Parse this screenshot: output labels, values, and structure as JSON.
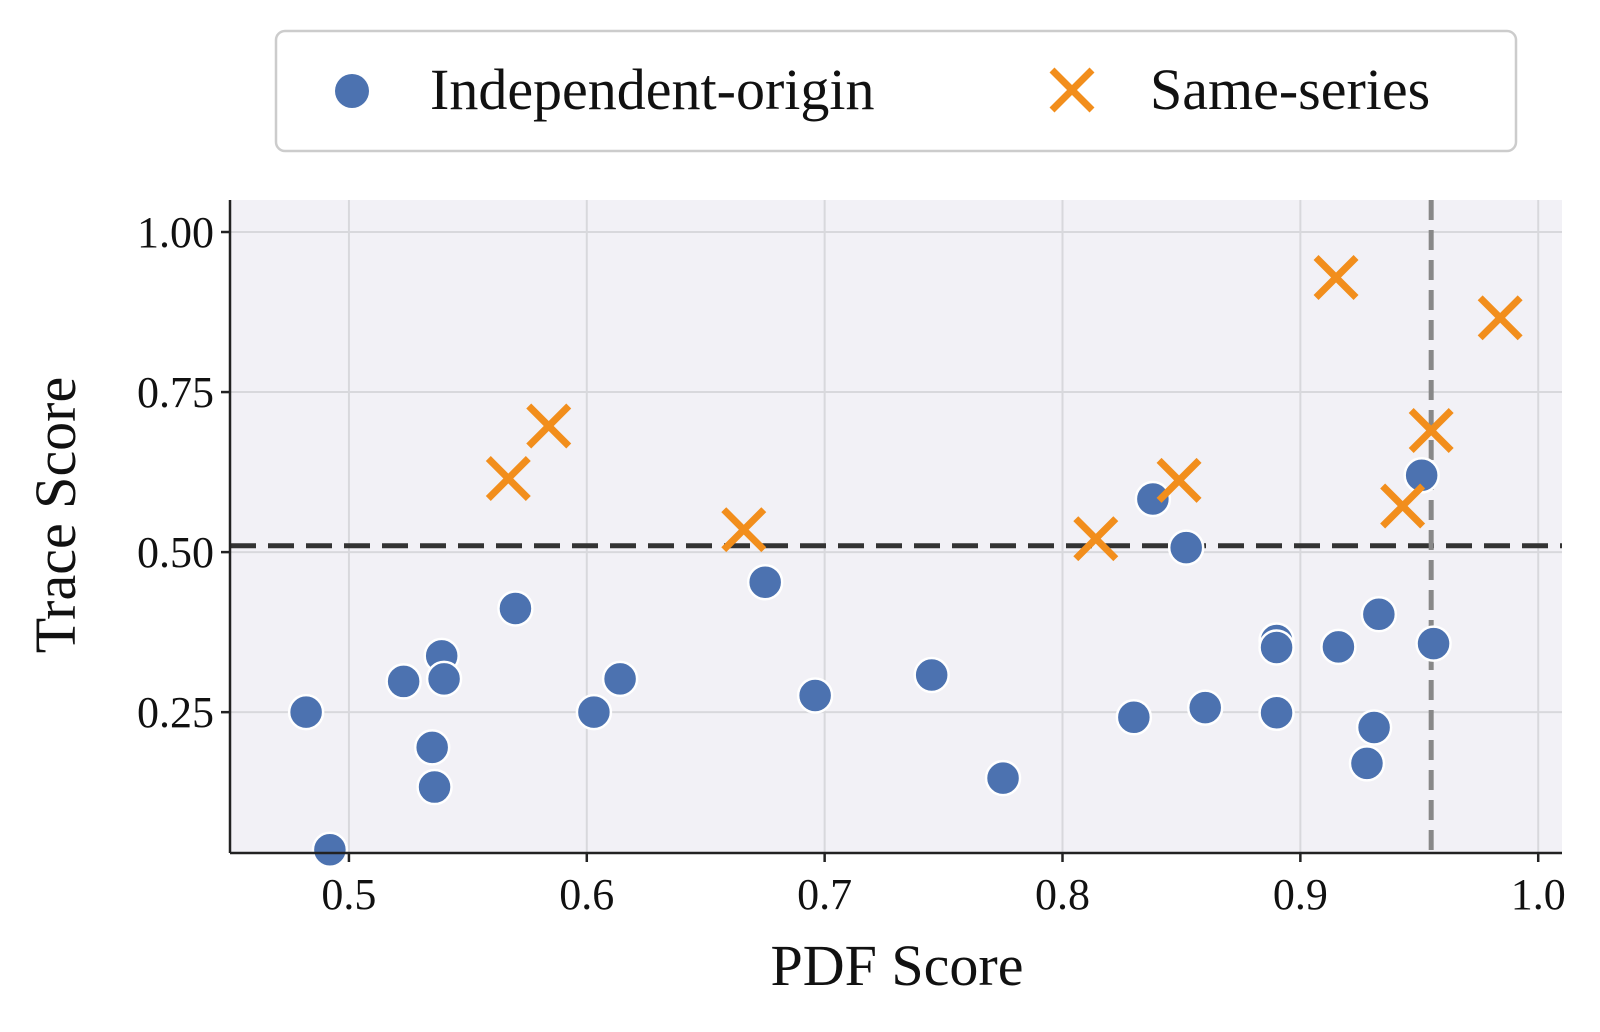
{
  "chart_data": {
    "type": "scatter",
    "title": "",
    "xlabel": "PDF Score",
    "ylabel": "Trace Score",
    "xlim": [
      0.45,
      1.01
    ],
    "ylim": [
      0.03,
      1.05
    ],
    "xticks": [
      0.5,
      0.6,
      0.7,
      0.8,
      0.9,
      1.0
    ],
    "xtick_labels": [
      "0.5",
      "0.6",
      "0.7",
      "0.8",
      "0.9",
      "1.0"
    ],
    "yticks": [
      0.25,
      0.5,
      0.75,
      1.0
    ],
    "ytick_labels": [
      "0.25",
      "0.50",
      "0.75",
      "1.00"
    ],
    "grid": true,
    "legend_position": "top, above plot",
    "colors": {
      "independent": "#4c72b0",
      "same": "#f28e1c",
      "background": "#f2f1f6",
      "grid": "#d8d8dc",
      "hline": "#333333",
      "vline": "#888888"
    },
    "reference_lines": {
      "horizontal_y": 0.51,
      "vertical_x": 0.955
    },
    "series": [
      {
        "name": "Independent-origin",
        "marker": "circle",
        "points": [
          [
            0.482,
            0.25
          ],
          [
            0.492,
            0.035
          ],
          [
            0.523,
            0.298
          ],
          [
            0.535,
            0.195
          ],
          [
            0.536,
            0.133
          ],
          [
            0.539,
            0.338
          ],
          [
            0.54,
            0.302
          ],
          [
            0.57,
            0.412
          ],
          [
            0.603,
            0.25
          ],
          [
            0.614,
            0.302
          ],
          [
            0.675,
            0.453
          ],
          [
            0.696,
            0.276
          ],
          [
            0.745,
            0.308
          ],
          [
            0.775,
            0.147
          ],
          [
            0.83,
            0.242
          ],
          [
            0.838,
            0.583
          ],
          [
            0.852,
            0.507
          ],
          [
            0.86,
            0.257
          ],
          [
            0.89,
            0.362
          ],
          [
            0.89,
            0.351
          ],
          [
            0.89,
            0.249
          ],
          [
            0.916,
            0.352
          ],
          [
            0.928,
            0.17
          ],
          [
            0.931,
            0.226
          ],
          [
            0.933,
            0.403
          ],
          [
            0.951,
            0.62
          ],
          [
            0.956,
            0.357
          ]
        ]
      },
      {
        "name": "Same-series",
        "marker": "x",
        "points": [
          [
            0.567,
            0.615
          ],
          [
            0.584,
            0.697
          ],
          [
            0.666,
            0.535
          ],
          [
            0.814,
            0.521
          ],
          [
            0.849,
            0.612
          ],
          [
            0.915,
            0.929
          ],
          [
            0.943,
            0.572
          ],
          [
            0.955,
            0.69
          ],
          [
            0.984,
            0.866
          ]
        ]
      }
    ]
  }
}
